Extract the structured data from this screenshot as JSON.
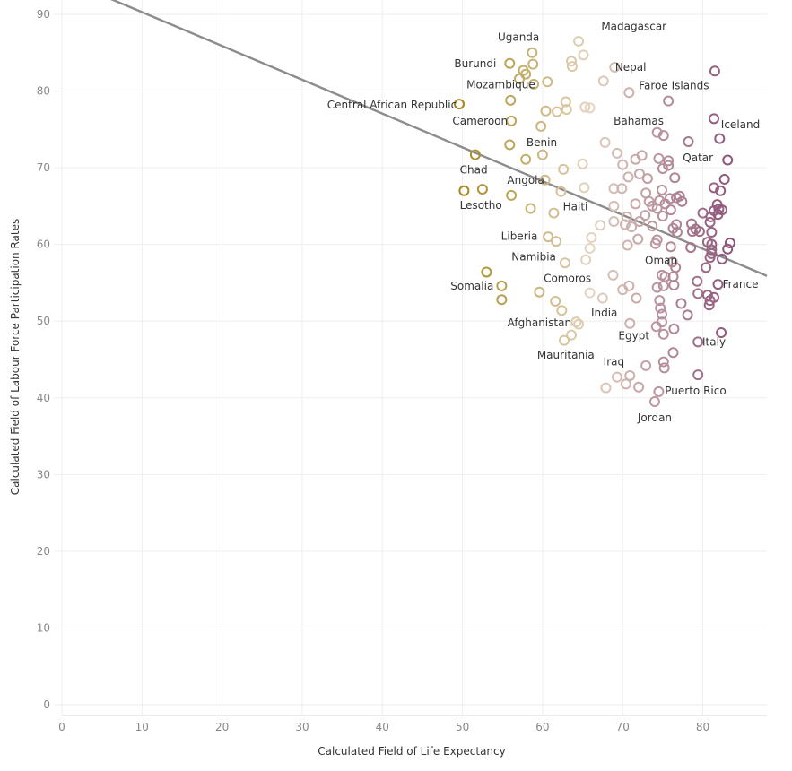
{
  "chart_data": {
    "type": "scatter",
    "title": "",
    "xlabel": "Calculated Field of Life Expectancy",
    "ylabel": "Calculated Field of Labour Force Participation Rates",
    "xlim": [
      0,
      88
    ],
    "ylim": [
      0,
      90
    ],
    "x_ticks": [
      0,
      10,
      20,
      30,
      40,
      50,
      60,
      70,
      80
    ],
    "y_ticks": [
      0,
      10,
      20,
      30,
      40,
      50,
      60,
      70,
      80,
      90
    ],
    "grid": true,
    "legend": "none",
    "trend_line": {
      "x": [
        0,
        88
      ],
      "y": [
        94.7,
        55.9
      ],
      "color": "#8c8c8c"
    },
    "color_scale": {
      "low_x": 50,
      "mid_x": 66,
      "high_x": 84,
      "low_color": "#a5891c",
      "mid_color": "#e4d4c0",
      "high_color": "#8a4e77"
    },
    "points": [
      {
        "x": 64.5,
        "y": 86.5,
        "label": "Madagascar"
      },
      {
        "x": 58.7,
        "y": 85.0,
        "label": "Uganda"
      },
      {
        "x": 55.9,
        "y": 83.6,
        "label": "Burundi"
      },
      {
        "x": 58.8,
        "y": 83.5
      },
      {
        "x": 57.6,
        "y": 82.7
      },
      {
        "x": 57.9,
        "y": 82.2
      },
      {
        "x": 57.1,
        "y": 81.6
      },
      {
        "x": 63.6,
        "y": 83.9
      },
      {
        "x": 63.7,
        "y": 83.2
      },
      {
        "x": 65.1,
        "y": 84.7
      },
      {
        "x": 69.0,
        "y": 83.1,
        "label": "Nepal"
      },
      {
        "x": 67.6,
        "y": 81.3
      },
      {
        "x": 70.8,
        "y": 79.8
      },
      {
        "x": 81.5,
        "y": 82.6,
        "label": "Faroe Islands"
      },
      {
        "x": 58.9,
        "y": 80.9,
        "label": "Mozambique"
      },
      {
        "x": 60.6,
        "y": 81.2
      },
      {
        "x": 49.6,
        "y": 78.3,
        "label": "Central African Republic"
      },
      {
        "x": 56.0,
        "y": 78.8
      },
      {
        "x": 62.9,
        "y": 78.6
      },
      {
        "x": 61.8,
        "y": 77.3
      },
      {
        "x": 63.0,
        "y": 77.6
      },
      {
        "x": 60.4,
        "y": 77.4
      },
      {
        "x": 65.3,
        "y": 77.9
      },
      {
        "x": 65.9,
        "y": 77.8
      },
      {
        "x": 75.7,
        "y": 78.7
      },
      {
        "x": 56.1,
        "y": 76.1,
        "label": "Cameroon"
      },
      {
        "x": 59.8,
        "y": 75.4
      },
      {
        "x": 74.3,
        "y": 74.6,
        "label": "Bahamas"
      },
      {
        "x": 75.1,
        "y": 74.2
      },
      {
        "x": 81.4,
        "y": 76.4,
        "label": "Iceland"
      },
      {
        "x": 82.1,
        "y": 73.8
      },
      {
        "x": 78.2,
        "y": 73.4
      },
      {
        "x": 55.9,
        "y": 73.0,
        "label": "Benin"
      },
      {
        "x": 51.6,
        "y": 71.7,
        "label": "Chad"
      },
      {
        "x": 57.9,
        "y": 71.1
      },
      {
        "x": 60.0,
        "y": 71.7
      },
      {
        "x": 67.8,
        "y": 73.3
      },
      {
        "x": 69.3,
        "y": 71.9
      },
      {
        "x": 72.4,
        "y": 71.6
      },
      {
        "x": 71.6,
        "y": 71.1
      },
      {
        "x": 74.5,
        "y": 71.2
      },
      {
        "x": 75.7,
        "y": 70.9
      },
      {
        "x": 83.1,
        "y": 71.0,
        "label": "Qatar"
      },
      {
        "x": 70.0,
        "y": 70.4
      },
      {
        "x": 75.0,
        "y": 69.9
      },
      {
        "x": 75.7,
        "y": 70.3
      },
      {
        "x": 65.0,
        "y": 70.5
      },
      {
        "x": 62.6,
        "y": 69.8
      },
      {
        "x": 60.3,
        "y": 68.4,
        "label": "Angola"
      },
      {
        "x": 70.7,
        "y": 68.8
      },
      {
        "x": 72.1,
        "y": 69.2
      },
      {
        "x": 73.1,
        "y": 68.6
      },
      {
        "x": 76.5,
        "y": 68.7
      },
      {
        "x": 82.7,
        "y": 68.5
      },
      {
        "x": 50.2,
        "y": 67.0,
        "label": "Lesotho"
      },
      {
        "x": 52.5,
        "y": 67.2
      },
      {
        "x": 56.1,
        "y": 66.4
      },
      {
        "x": 62.3,
        "y": 66.9
      },
      {
        "x": 65.2,
        "y": 67.4
      },
      {
        "x": 68.9,
        "y": 67.3
      },
      {
        "x": 69.9,
        "y": 67.3
      },
      {
        "x": 74.9,
        "y": 67.1
      },
      {
        "x": 81.4,
        "y": 67.4
      },
      {
        "x": 82.2,
        "y": 67.0
      },
      {
        "x": 72.9,
        "y": 66.7
      },
      {
        "x": 73.3,
        "y": 65.6
      },
      {
        "x": 71.6,
        "y": 65.3
      },
      {
        "x": 73.7,
        "y": 65.0
      },
      {
        "x": 74.6,
        "y": 65.7
      },
      {
        "x": 75.3,
        "y": 65.3
      },
      {
        "x": 75.9,
        "y": 66.0
      },
      {
        "x": 76.7,
        "y": 66.1
      },
      {
        "x": 77.1,
        "y": 66.3
      },
      {
        "x": 77.4,
        "y": 65.6
      },
      {
        "x": 58.5,
        "y": 64.7
      },
      {
        "x": 61.4,
        "y": 64.1,
        "label": "Haiti"
      },
      {
        "x": 68.9,
        "y": 65.0
      },
      {
        "x": 74.3,
        "y": 64.7
      },
      {
        "x": 76.0,
        "y": 64.5
      },
      {
        "x": 70.5,
        "y": 63.6
      },
      {
        "x": 72.1,
        "y": 63.0
      },
      {
        "x": 72.8,
        "y": 63.8
      },
      {
        "x": 75.0,
        "y": 63.7
      },
      {
        "x": 80.0,
        "y": 64.1
      },
      {
        "x": 81.0,
        "y": 63.6
      },
      {
        "x": 81.4,
        "y": 64.4
      },
      {
        "x": 81.8,
        "y": 65.2
      },
      {
        "x": 82.0,
        "y": 64.6
      },
      {
        "x": 82.4,
        "y": 64.5
      },
      {
        "x": 81.9,
        "y": 63.9
      },
      {
        "x": 67.2,
        "y": 62.5
      },
      {
        "x": 68.9,
        "y": 63.0
      },
      {
        "x": 70.3,
        "y": 62.6
      },
      {
        "x": 71.1,
        "y": 62.3
      },
      {
        "x": 73.7,
        "y": 62.4
      },
      {
        "x": 76.3,
        "y": 62.1
      },
      {
        "x": 76.7,
        "y": 62.6
      },
      {
        "x": 76.8,
        "y": 61.6
      },
      {
        "x": 78.6,
        "y": 62.7
      },
      {
        "x": 78.7,
        "y": 61.7
      },
      {
        "x": 79.1,
        "y": 62.0
      },
      {
        "x": 79.6,
        "y": 61.7
      },
      {
        "x": 80.9,
        "y": 62.9
      },
      {
        "x": 81.1,
        "y": 61.6
      },
      {
        "x": 60.7,
        "y": 61.0,
        "label": "Liberia"
      },
      {
        "x": 61.7,
        "y": 60.4
      },
      {
        "x": 66.1,
        "y": 60.9
      },
      {
        "x": 65.9,
        "y": 59.5
      },
      {
        "x": 71.9,
        "y": 60.7
      },
      {
        "x": 74.3,
        "y": 60.6
      },
      {
        "x": 74.1,
        "y": 60.1
      },
      {
        "x": 70.6,
        "y": 59.9
      },
      {
        "x": 76.0,
        "y": 59.7
      },
      {
        "x": 78.5,
        "y": 59.6
      },
      {
        "x": 80.6,
        "y": 60.3
      },
      {
        "x": 81.1,
        "y": 60.0
      },
      {
        "x": 81.1,
        "y": 59.3
      },
      {
        "x": 83.4,
        "y": 60.2
      },
      {
        "x": 83.1,
        "y": 59.4
      },
      {
        "x": 62.8,
        "y": 57.6,
        "label": "Namibia"
      },
      {
        "x": 65.4,
        "y": 58.0
      },
      {
        "x": 76.2,
        "y": 57.7
      },
      {
        "x": 76.6,
        "y": 57.0
      },
      {
        "x": 80.4,
        "y": 57.0
      },
      {
        "x": 80.9,
        "y": 58.3,
        "label": "Oman"
      },
      {
        "x": 81.1,
        "y": 58.8
      },
      {
        "x": 82.4,
        "y": 58.1
      },
      {
        "x": 53.0,
        "y": 56.4,
        "label": "Somalia"
      },
      {
        "x": 68.8,
        "y": 56.0
      },
      {
        "x": 74.9,
        "y": 56.0
      },
      {
        "x": 75.3,
        "y": 55.8
      },
      {
        "x": 76.3,
        "y": 55.8
      },
      {
        "x": 79.3,
        "y": 55.2
      },
      {
        "x": 81.9,
        "y": 54.8,
        "label": "France"
      },
      {
        "x": 54.9,
        "y": 54.6
      },
      {
        "x": 59.6,
        "y": 53.8,
        "label": "Comoros"
      },
      {
        "x": 65.9,
        "y": 53.7
      },
      {
        "x": 70.0,
        "y": 54.1
      },
      {
        "x": 70.8,
        "y": 54.6
      },
      {
        "x": 74.3,
        "y": 54.4
      },
      {
        "x": 75.1,
        "y": 54.6
      },
      {
        "x": 76.4,
        "y": 54.7
      },
      {
        "x": 79.4,
        "y": 53.6
      },
      {
        "x": 80.6,
        "y": 53.4
      },
      {
        "x": 81.4,
        "y": 53.1
      },
      {
        "x": 54.9,
        "y": 52.8
      },
      {
        "x": 61.6,
        "y": 52.6
      },
      {
        "x": 67.5,
        "y": 53.0
      },
      {
        "x": 71.7,
        "y": 53.0
      },
      {
        "x": 74.6,
        "y": 52.7
      },
      {
        "x": 77.3,
        "y": 52.3
      },
      {
        "x": 80.9,
        "y": 52.7
      },
      {
        "x": 80.8,
        "y": 52.1
      },
      {
        "x": 62.4,
        "y": 51.4,
        "label": "India"
      },
      {
        "x": 74.7,
        "y": 51.7
      },
      {
        "x": 74.9,
        "y": 50.9
      },
      {
        "x": 78.1,
        "y": 50.8
      },
      {
        "x": 64.2,
        "y": 49.9,
        "label": "Afghanistan"
      },
      {
        "x": 64.5,
        "y": 49.6
      },
      {
        "x": 70.9,
        "y": 49.7
      },
      {
        "x": 74.2,
        "y": 49.3
      },
      {
        "x": 74.9,
        "y": 49.9
      },
      {
        "x": 76.4,
        "y": 49.0
      },
      {
        "x": 63.6,
        "y": 48.2,
        "label": "Egypt"
      },
      {
        "x": 62.7,
        "y": 47.5,
        "label": "Mauritania"
      },
      {
        "x": 75.1,
        "y": 48.3
      },
      {
        "x": 82.3,
        "y": 48.5
      },
      {
        "x": 79.4,
        "y": 47.3,
        "label": "Italy"
      },
      {
        "x": 76.3,
        "y": 45.9
      },
      {
        "x": 75.1,
        "y": 44.7,
        "label": "Iraq"
      },
      {
        "x": 75.2,
        "y": 43.9
      },
      {
        "x": 72.9,
        "y": 44.2
      },
      {
        "x": 79.4,
        "y": 43.0
      },
      {
        "x": 69.3,
        "y": 42.7
      },
      {
        "x": 70.9,
        "y": 42.9
      },
      {
        "x": 70.4,
        "y": 41.8
      },
      {
        "x": 67.9,
        "y": 41.3
      },
      {
        "x": 72.0,
        "y": 41.4
      },
      {
        "x": 74.5,
        "y": 40.8,
        "label": "Puerto Rico"
      },
      {
        "x": 74.0,
        "y": 39.5,
        "label": "Jordan"
      }
    ],
    "labels": [
      {
        "text": "Madagascar",
        "lx": 71.4,
        "ly": 88.4
      },
      {
        "text": "Uganda",
        "lx": 57.0,
        "ly": 87.0
      },
      {
        "text": "Burundi",
        "lx": 51.6,
        "ly": 83.6
      },
      {
        "text": "Nepal",
        "lx": 71.0,
        "ly": 83.1
      },
      {
        "text": "Faroe Islands",
        "lx": 76.4,
        "ly": 80.7
      },
      {
        "text": "Mozambique",
        "lx": 54.8,
        "ly": 80.8
      },
      {
        "text": "Central African Republic",
        "lx": 41.2,
        "ly": 78.2
      },
      {
        "text": "Cameroon",
        "lx": 52.2,
        "ly": 76.1
      },
      {
        "text": "Bahamas",
        "lx": 72.0,
        "ly": 76.1
      },
      {
        "text": "Iceland",
        "lx": 84.7,
        "ly": 75.6
      },
      {
        "text": "Benin",
        "lx": 59.9,
        "ly": 73.3
      },
      {
        "text": "Qatar",
        "lx": 79.4,
        "ly": 71.3
      },
      {
        "text": "Chad",
        "lx": 51.4,
        "ly": 69.7
      },
      {
        "text": "Angola",
        "lx": 57.9,
        "ly": 68.4
      },
      {
        "text": "Lesotho",
        "lx": 52.3,
        "ly": 65.1
      },
      {
        "text": "Haiti",
        "lx": 64.1,
        "ly": 64.9
      },
      {
        "text": "Liberia",
        "lx": 57.1,
        "ly": 61.1
      },
      {
        "text": "Namibia",
        "lx": 58.9,
        "ly": 58.4
      },
      {
        "text": "Oman",
        "lx": 74.8,
        "ly": 57.9
      },
      {
        "text": "Comoros",
        "lx": 63.1,
        "ly": 55.6
      },
      {
        "text": "France",
        "lx": 84.7,
        "ly": 54.8
      },
      {
        "text": "Somalia",
        "lx": 51.2,
        "ly": 54.6
      },
      {
        "text": "India",
        "lx": 67.7,
        "ly": 51.1
      },
      {
        "text": "Afghanistan",
        "lx": 59.6,
        "ly": 49.8
      },
      {
        "text": "Egypt",
        "lx": 71.4,
        "ly": 48.1
      },
      {
        "text": "Italy",
        "lx": 81.4,
        "ly": 47.3
      },
      {
        "text": "Mauritania",
        "lx": 62.9,
        "ly": 45.6
      },
      {
        "text": "Iraq",
        "lx": 68.9,
        "ly": 44.7
      },
      {
        "text": "Puerto Rico",
        "lx": 79.1,
        "ly": 40.9
      },
      {
        "text": "Jordan",
        "lx": 74.0,
        "ly": 37.4
      }
    ]
  }
}
